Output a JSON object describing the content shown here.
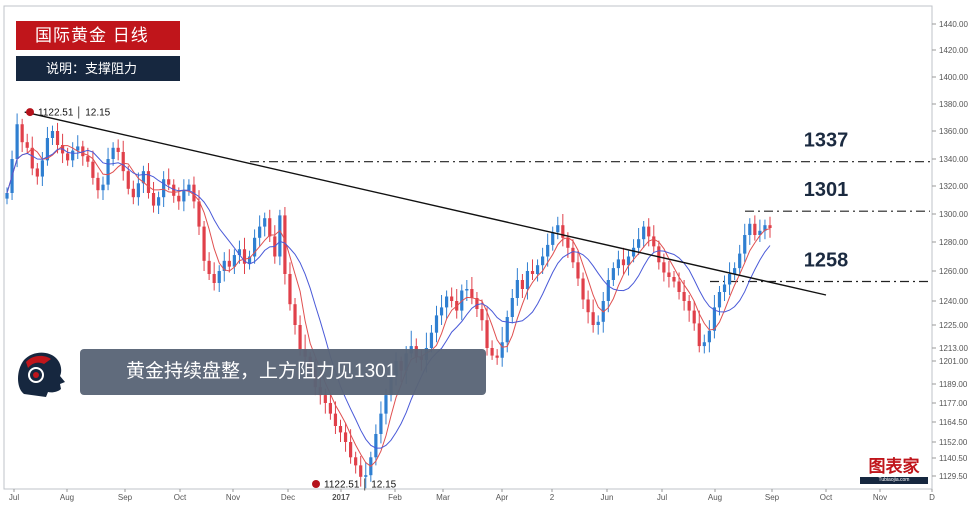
{
  "header": {
    "title": "国际黄金  日线",
    "subtitle": "说明：支撑阻力"
  },
  "banner": {
    "text": "黄金持续盘整，上方阻力见1301"
  },
  "watermark": {
    "brand": "图表家",
    "site": "Tubiaojia.com"
  },
  "colors": {
    "title_bg": "#c0151b",
    "subtitle_bg": "#16273f",
    "bull_candle": "#2f7fd1",
    "bear_candle": "#e0404a",
    "ma_fast": "#e05050",
    "ma_slow": "#4a5ad8",
    "trendline": "#111111",
    "banner_bg": "#5a6577"
  },
  "chart_data": {
    "type": "candlestick",
    "title": "国际黄金  日线",
    "x_labels": [
      "Jul",
      "Aug",
      "Sep",
      "Oct",
      "Nov",
      "Dec",
      "2017",
      "Feb",
      "Mar",
      "Apr",
      "2",
      "Jun",
      "Jul",
      "Aug",
      "Sep",
      "Oct",
      "Nov",
      "D"
    ],
    "y_ticks": [
      "1440.00",
      "1420.00",
      "1400.00",
      "1380.00",
      "1360.00",
      "1340.00",
      "1320.00",
      "1300.00",
      "1280.00",
      "1260.00",
      "1240.00",
      "1225.00",
      "1213.00",
      "1201.00",
      "1189.00",
      "1177.00",
      "1164.50",
      "1152.00",
      "1140.50",
      "1129.50"
    ],
    "ylim": [
      1124,
      1452
    ],
    "grid": false,
    "levels": [
      {
        "label": "1337",
        "value": 1338
      },
      {
        "label": "1301",
        "value": 1302
      },
      {
        "label": "1258",
        "value": 1253
      }
    ],
    "annotations": [
      {
        "text": "1122.51 │ 12.15",
        "date": "Jul (start)",
        "value": 1374
      },
      {
        "text": "1122.51 │ 12.15",
        "date": "Dec 15",
        "value": 1124
      }
    ],
    "trendline": {
      "from": {
        "day": 7,
        "value": 1374
      },
      "to": {
        "day": 294,
        "value": 1244
      }
    },
    "series": [
      {
        "name": "close",
        "values": [
          1315,
          1340,
          1365,
          1352,
          1348,
          1333,
          1327,
          1339,
          1355,
          1360,
          1350,
          1344,
          1339,
          1346,
          1349,
          1342,
          1338,
          1326,
          1317,
          1321,
          1340,
          1348,
          1345,
          1331,
          1318,
          1312,
          1322,
          1331,
          1315,
          1306,
          1312,
          1325,
          1321,
          1313,
          1309,
          1317,
          1321,
          1309,
          1291,
          1267,
          1258,
          1252,
          1260,
          1267,
          1263,
          1271,
          1275,
          1265,
          1270,
          1283,
          1291,
          1297,
          1284,
          1270,
          1299,
          1258,
          1238,
          1225,
          1212,
          1205,
          1197,
          1187,
          1182,
          1177,
          1170,
          1162,
          1158,
          1152,
          1141,
          1136,
          1129,
          1130,
          1141,
          1157,
          1170,
          1182,
          1193,
          1201,
          1196,
          1208,
          1214,
          1205,
          1202,
          1213,
          1221,
          1231,
          1236,
          1243,
          1240,
          1234,
          1247,
          1248,
          1242,
          1235,
          1228,
          1213,
          1206,
          1204,
          1216,
          1230,
          1242,
          1254,
          1248,
          1260,
          1258,
          1264,
          1270,
          1278,
          1287,
          1292,
          1283,
          1276,
          1266,
          1255,
          1241,
          1233,
          1225,
          1227,
          1240,
          1254,
          1262,
          1268,
          1264,
          1270,
          1276,
          1282,
          1291,
          1284,
          1277,
          1266,
          1259,
          1256,
          1253,
          1246,
          1240,
          1234,
          1226,
          1214,
          1216,
          1222,
          1236,
          1246,
          1251,
          1258,
          1262,
          1272,
          1285,
          1293,
          1285,
          1288,
          1292,
          1290
        ]
      }
    ]
  }
}
